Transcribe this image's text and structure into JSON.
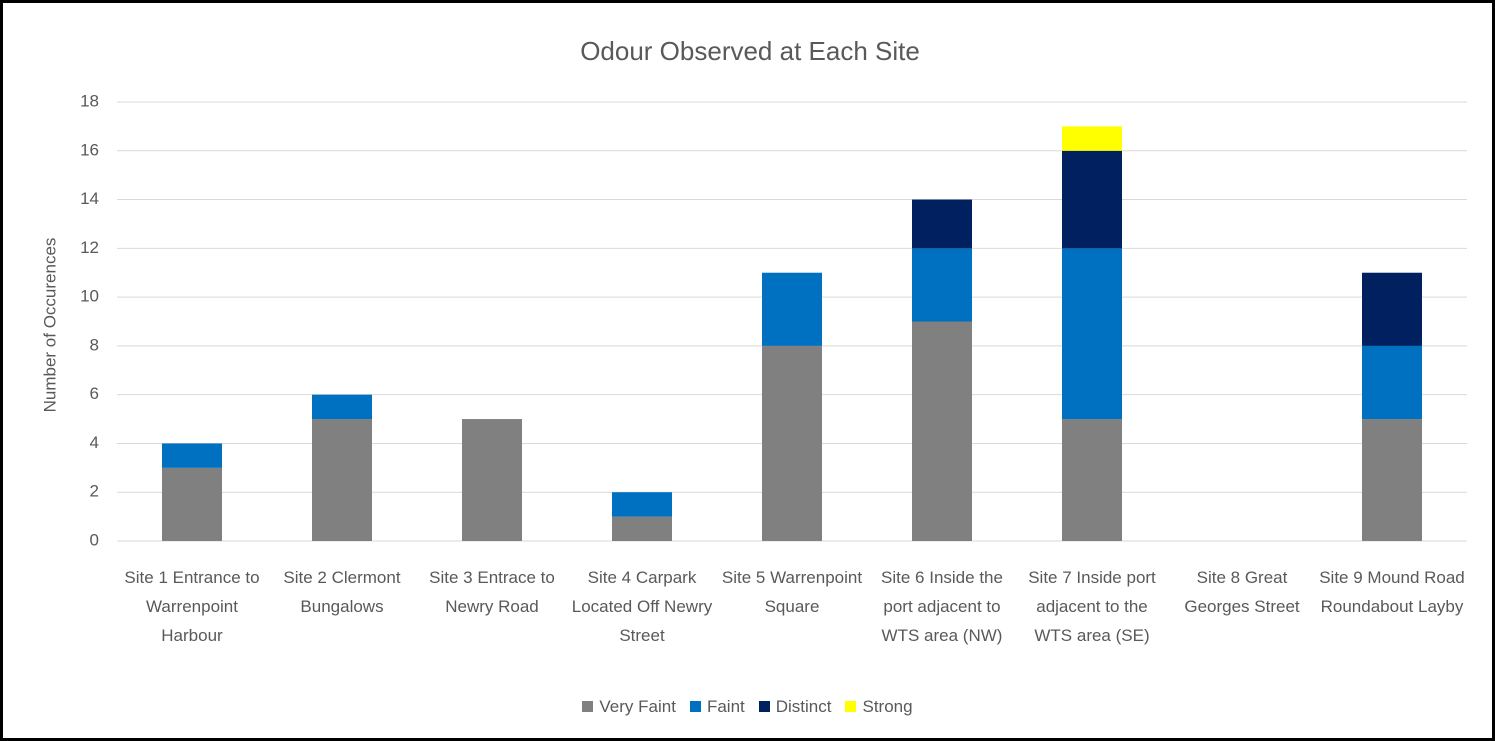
{
  "chart_data": {
    "type": "stacked_bar",
    "title": "Odour Observed at Each Site",
    "y_label": "Number of Occurences",
    "categories": [
      "Site 1 Entrance to Warrenpoint Harbour",
      "Site 2 Clermont Bungalows",
      "Site 3 Entrace to Newry Road",
      "Site 4 Carpark Located Off Newry Street",
      "Site 5 Warrenpoint Square",
      "Site 6 Inside the port adjacent to WTS area (NW)",
      "Site 7 Inside port adjacent to the WTS area (SE)",
      "Site 8 Great Georges Street",
      "Site 9 Mound Road Roundabout Layby"
    ],
    "series": [
      {
        "name": "Very Faint",
        "color": "#808080",
        "values": [
          3,
          5,
          5,
          1,
          8,
          9,
          5,
          0,
          5
        ]
      },
      {
        "name": "Faint",
        "color": "#0070c0",
        "values": [
          1,
          1,
          0,
          1,
          3,
          3,
          7,
          0,
          3
        ]
      },
      {
        "name": "Distinct",
        "color": "#002060",
        "values": [
          0,
          0,
          0,
          0,
          0,
          2,
          4,
          0,
          3
        ]
      },
      {
        "name": "Strong",
        "color": "#ffff00",
        "values": [
          0,
          0,
          0,
          0,
          0,
          0,
          1,
          0,
          0
        ]
      }
    ],
    "ylim": [
      0,
      18
    ],
    "yticks": [
      0,
      2,
      4,
      6,
      8,
      10,
      12,
      14,
      16,
      18
    ],
    "grid": true,
    "legend": "bottom"
  }
}
